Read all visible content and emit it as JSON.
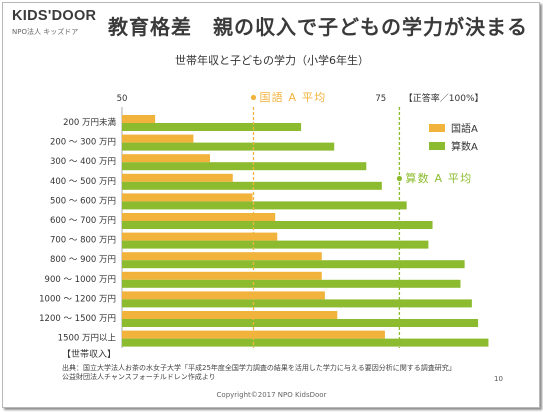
{
  "logo": {
    "name": "KIDS'DOOR",
    "sub": "NPO法人 キッズドア"
  },
  "slide": {
    "title": "教育格差　親の収入で子どもの学力が決まる",
    "source_line1": "出典：国立大学法人お茶の水女子大学「平成25年度全国学力調査の結果を活用した学力に与える要因分析に関する調査研究」",
    "source_line2": "公益財団法人チャンスフォーチルドレン作成より",
    "page_number": "10",
    "copyright": "Copyright©2017 NPO KidsDoor"
  },
  "chart_data": {
    "type": "bar",
    "orientation": "horizontal",
    "title": "世帯年収と子どもの学力（小学6年生）",
    "xlabel": "【正答率／100%】",
    "ylabel": "【世帯収入】",
    "xlim": [
      50,
      87
    ],
    "xticks": [
      50,
      75
    ],
    "grid": false,
    "legend": {
      "position": "top-right"
    },
    "categories": [
      "200 万円未満",
      "200 ～ 300 万円",
      "300 ～ 400 万円",
      "400 ～ 500 万円",
      "500 ～ 600 万円",
      "600 ～ 700 万円",
      "700 ～ 800 万円",
      "800 ～ 900 万円",
      "900 ～ 1000 万円",
      "1000 ～ 1200 万円",
      "1200 ～ 1500 万円",
      "1500 万円以上"
    ],
    "series": [
      {
        "name": "国語A",
        "color": "#F2B33D",
        "values": [
          53.2,
          56.9,
          58.5,
          60.7,
          62.6,
          64.8,
          65.0,
          69.3,
          69.3,
          69.6,
          70.8,
          75.4
        ]
      },
      {
        "name": "算数A",
        "color": "#8DBB2F",
        "values": [
          67.3,
          70.5,
          73.6,
          75.1,
          77.5,
          80.0,
          79.6,
          83.1,
          82.7,
          83.8,
          84.4,
          85.4
        ]
      }
    ],
    "reference_lines": [
      {
        "label": "国語 A 平均",
        "value": 62.7,
        "color": "#F2B33D"
      },
      {
        "label": "算数 A 平均",
        "value": 76.8,
        "color": "#8DBB2F"
      }
    ]
  }
}
